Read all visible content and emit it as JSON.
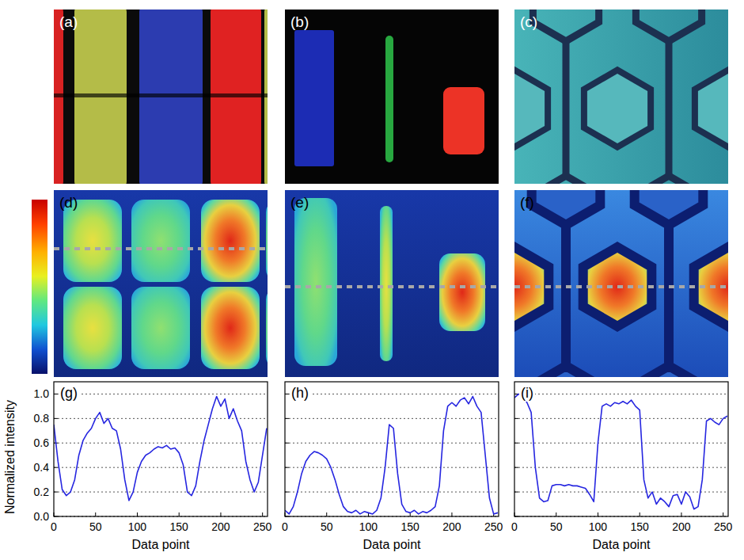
{
  "panels": [
    {
      "label": "(a)"
    },
    {
      "label": "(b)"
    },
    {
      "label": "(c)"
    },
    {
      "label": "(d)"
    },
    {
      "label": "(e)"
    },
    {
      "label": "(f)"
    }
  ],
  "chart_data": [
    {
      "type": "line",
      "title": "(g)",
      "x_label": "Data point",
      "y_label": "Normalized intensity",
      "color": "#2626e0",
      "x": [
        0,
        5,
        10,
        15,
        20,
        25,
        30,
        35,
        40,
        45,
        50,
        55,
        60,
        65,
        70,
        75,
        80,
        85,
        90,
        95,
        100,
        105,
        110,
        115,
        120,
        125,
        130,
        135,
        140,
        145,
        150,
        155,
        160,
        165,
        170,
        175,
        180,
        185,
        190,
        195,
        200,
        205,
        210,
        215,
        220,
        225,
        230,
        235,
        240,
        245,
        250,
        255
      ],
      "values": [
        0.75,
        0.45,
        0.22,
        0.17,
        0.2,
        0.3,
        0.5,
        0.62,
        0.68,
        0.72,
        0.8,
        0.85,
        0.76,
        0.8,
        0.72,
        0.7,
        0.55,
        0.3,
        0.13,
        0.2,
        0.36,
        0.45,
        0.5,
        0.52,
        0.55,
        0.57,
        0.56,
        0.58,
        0.55,
        0.56,
        0.52,
        0.42,
        0.2,
        0.17,
        0.25,
        0.45,
        0.62,
        0.75,
        0.88,
        0.98,
        0.9,
        0.96,
        0.8,
        0.88,
        0.78,
        0.7,
        0.45,
        0.3,
        0.2,
        0.28,
        0.5,
        0.72
      ],
      "xlim": [
        0,
        256
      ],
      "ylim": [
        0,
        1.1
      ],
      "xticks": [
        0,
        50,
        100,
        150,
        200,
        250
      ],
      "yticks": [
        {
          "value": 0,
          "label": "0.0"
        },
        {
          "value": 0.2,
          "label": "0.2"
        },
        {
          "value": 0.4,
          "label": "0.4"
        },
        {
          "value": 0.6,
          "label": "0.6"
        },
        {
          "value": 0.8,
          "label": "0.8"
        },
        {
          "value": 1,
          "label": "1.0"
        }
      ],
      "grid": true
    },
    {
      "type": "line",
      "title": "(h)",
      "x_label": "Data point",
      "color": "#2626e0",
      "x": [
        0,
        5,
        10,
        15,
        20,
        25,
        30,
        35,
        40,
        45,
        50,
        55,
        60,
        65,
        70,
        75,
        80,
        85,
        90,
        95,
        100,
        105,
        110,
        115,
        120,
        125,
        130,
        135,
        140,
        145,
        150,
        155,
        160,
        165,
        170,
        175,
        180,
        185,
        190,
        195,
        200,
        205,
        210,
        215,
        220,
        225,
        230,
        235,
        240,
        245,
        250,
        255
      ],
      "values": [
        0.05,
        0.02,
        0.08,
        0.2,
        0.35,
        0.45,
        0.5,
        0.53,
        0.52,
        0.5,
        0.47,
        0.4,
        0.3,
        0.18,
        0.08,
        0.04,
        0.03,
        0.05,
        0.02,
        0.04,
        0.03,
        0.02,
        0.05,
        0.15,
        0.4,
        0.75,
        0.72,
        0.35,
        0.1,
        0.04,
        0.03,
        0.05,
        0.02,
        0.04,
        0.03,
        0.05,
        0.08,
        0.25,
        0.7,
        0.9,
        0.93,
        0.9,
        0.95,
        0.97,
        0.92,
        0.98,
        0.9,
        0.85,
        0.5,
        0.15,
        0.02,
        0.03
      ],
      "xlim": [
        0,
        256
      ],
      "ylim": [
        0,
        1.1
      ],
      "xticks": [
        0,
        50,
        100,
        150,
        200,
        250
      ],
      "yticks": [
        {
          "value": 0,
          "label": "0.0"
        },
        {
          "value": 0.2,
          "label": "0.2"
        },
        {
          "value": 0.4,
          "label": "0.4"
        },
        {
          "value": 0.6,
          "label": "0.6"
        },
        {
          "value": 0.8,
          "label": "0.8"
        },
        {
          "value": 1,
          "label": "1.0"
        }
      ],
      "grid": true,
      "tick_labels": "x"
    },
    {
      "type": "line",
      "title": "(i)",
      "x_label": "Data point",
      "color": "#2626e0",
      "x": [
        0,
        5,
        10,
        15,
        20,
        25,
        30,
        35,
        40,
        45,
        50,
        55,
        60,
        65,
        70,
        75,
        80,
        85,
        90,
        95,
        100,
        105,
        110,
        115,
        120,
        125,
        130,
        135,
        140,
        145,
        150,
        155,
        160,
        165,
        170,
        175,
        180,
        185,
        190,
        195,
        200,
        205,
        210,
        215,
        220,
        225,
        230,
        235,
        240,
        245,
        250,
        255
      ],
      "values": [
        0.97,
        1.0,
        0.98,
        0.93,
        0.85,
        0.4,
        0.15,
        0.12,
        0.13,
        0.25,
        0.26,
        0.26,
        0.25,
        0.26,
        0.25,
        0.25,
        0.24,
        0.23,
        0.18,
        0.12,
        0.6,
        0.9,
        0.92,
        0.9,
        0.93,
        0.92,
        0.94,
        0.92,
        0.95,
        0.9,
        0.87,
        0.3,
        0.15,
        0.2,
        0.1,
        0.15,
        0.12,
        0.08,
        0.17,
        0.18,
        0.1,
        0.2,
        0.16,
        0.06,
        0.08,
        0.3,
        0.78,
        0.8,
        0.77,
        0.75,
        0.8,
        0.82
      ],
      "xlim": [
        0,
        256
      ],
      "ylim": [
        0,
        1.1
      ],
      "xticks": [
        0,
        50,
        100,
        150,
        200,
        250
      ],
      "yticks": [
        {
          "value": 0,
          "label": "0.0"
        },
        {
          "value": 0.2,
          "label": "0.2"
        },
        {
          "value": 0.4,
          "label": "0.4"
        },
        {
          "value": 0.6,
          "label": "0.6"
        },
        {
          "value": 0.8,
          "label": "0.8"
        },
        {
          "value": 1,
          "label": "1.0"
        }
      ],
      "grid": true,
      "tick_labels": "x"
    }
  ]
}
